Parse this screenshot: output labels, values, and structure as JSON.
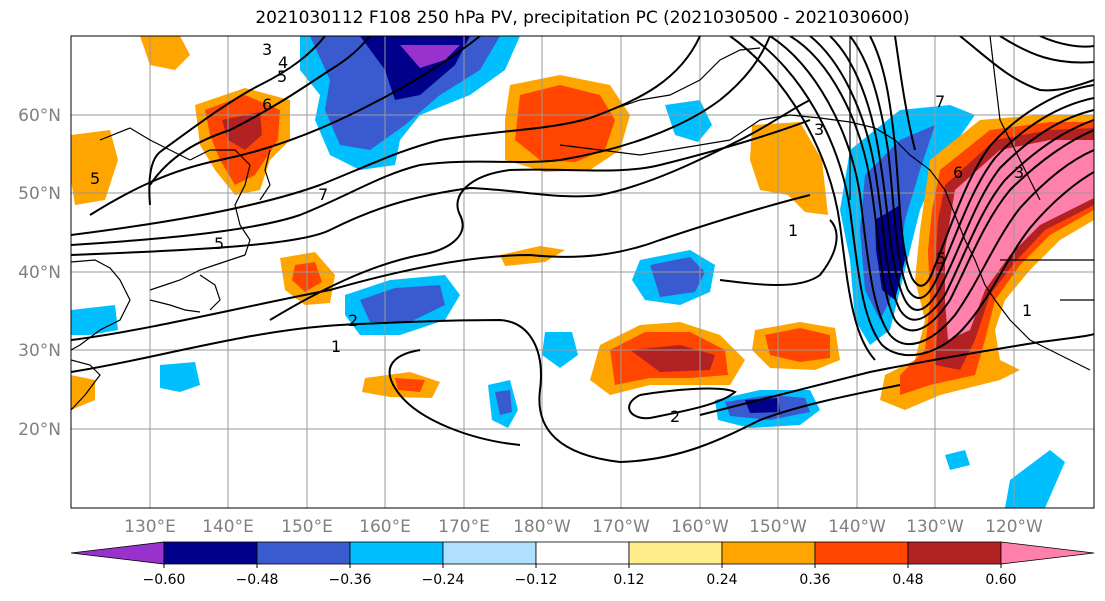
{
  "title": "2021030112 F108 250 hPa PV, precipitation PC (2021030500 - 2021030600)",
  "lat_labels": [
    "60°N",
    "50°N",
    "40°N",
    "30°N",
    "20°N"
  ],
  "lon_labels": [
    "130°E",
    "140°E",
    "150°E",
    "160°E",
    "170°E",
    "180°W",
    "170°W",
    "160°W",
    "150°W",
    "140°W",
    "130°W",
    "120°W"
  ],
  "contour_labels": [
    "3",
    "4",
    "5",
    "6",
    "5",
    "7",
    "5",
    "2",
    "1",
    "2",
    "7",
    "3",
    "1",
    "5",
    "6",
    "3",
    "1"
  ],
  "colorbar": {
    "ticks": [
      "−0.60",
      "−0.48",
      "−0.36",
      "−0.24",
      "−0.12",
      "0.12",
      "0.24",
      "0.36",
      "0.48",
      "0.60"
    ],
    "colors": [
      "#9932cc",
      "#00008b",
      "#3a5bcf",
      "#00bfff",
      "#b0e0ff",
      "#ffffff",
      "#ffec8b",
      "#ffa500",
      "#ff4500",
      "#b22222",
      "#ff80aa"
    ]
  }
}
